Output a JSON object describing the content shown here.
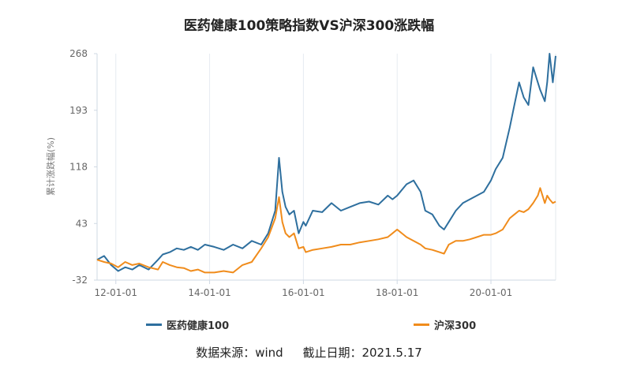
{
  "chart_data": {
    "type": "line",
    "title": "医药健康100策略指数VS沪深300涨跌幅",
    "ylabel": "累计涨跌幅(%)",
    "xlabel": "",
    "ylim": [
      -32,
      268
    ],
    "yticks": [
      "268",
      "193",
      "118",
      "43",
      "-32"
    ],
    "ytick_values": [
      268,
      193,
      118,
      43,
      -32
    ],
    "xlim": [
      2011.6,
      2021.38
    ],
    "xticks": [
      "12-01-01",
      "14-01-01",
      "16-01-01",
      "18-01-01",
      "20-01-01"
    ],
    "xtick_values": [
      2012,
      2014,
      2016,
      2018,
      2020
    ],
    "grid": "vertical",
    "legend": "bottom",
    "series": [
      {
        "name": "医药健康100",
        "color": "#2e6f9e",
        "x": [
          2011.6,
          2011.75,
          2011.9,
          2012.05,
          2012.2,
          2012.35,
          2012.5,
          2012.7,
          2012.9,
          2013.0,
          2013.15,
          2013.3,
          2013.45,
          2013.6,
          2013.75,
          2013.9,
          2014.1,
          2014.3,
          2014.5,
          2014.7,
          2014.9,
          2015.1,
          2015.25,
          2015.4,
          2015.48,
          2015.55,
          2015.62,
          2015.7,
          2015.8,
          2015.9,
          2016.0,
          2016.05,
          2016.2,
          2016.4,
          2016.6,
          2016.8,
          2017.0,
          2017.2,
          2017.4,
          2017.6,
          2017.8,
          2017.9,
          2018.0,
          2018.2,
          2018.35,
          2018.5,
          2018.6,
          2018.75,
          2018.9,
          2019.0,
          2019.1,
          2019.25,
          2019.4,
          2019.55,
          2019.7,
          2019.85,
          2020.0,
          2020.1,
          2020.25,
          2020.4,
          2020.5,
          2020.6,
          2020.7,
          2020.8,
          2020.9,
          2021.0,
          2021.05,
          2021.15,
          2021.2,
          2021.25,
          2021.32,
          2021.38
        ],
        "values": [
          -5,
          0,
          -12,
          -20,
          -15,
          -18,
          -12,
          -18,
          -5,
          2,
          5,
          10,
          8,
          12,
          8,
          15,
          12,
          8,
          15,
          10,
          20,
          15,
          30,
          60,
          130,
          85,
          65,
          55,
          60,
          30,
          45,
          40,
          60,
          58,
          70,
          60,
          65,
          70,
          72,
          68,
          80,
          75,
          80,
          95,
          100,
          85,
          60,
          55,
          40,
          35,
          45,
          60,
          70,
          75,
          80,
          85,
          100,
          115,
          130,
          170,
          200,
          230,
          210,
          200,
          250,
          230,
          220,
          205,
          230,
          268,
          230,
          265
        ]
      },
      {
        "name": "沪深300",
        "color": "#f08c1c",
        "x": [
          2011.6,
          2011.75,
          2011.9,
          2012.05,
          2012.2,
          2012.35,
          2012.5,
          2012.7,
          2012.9,
          2013.0,
          2013.15,
          2013.3,
          2013.45,
          2013.6,
          2013.75,
          2013.9,
          2014.1,
          2014.3,
          2014.5,
          2014.7,
          2014.9,
          2015.1,
          2015.25,
          2015.4,
          2015.48,
          2015.55,
          2015.62,
          2015.7,
          2015.8,
          2015.9,
          2016.0,
          2016.05,
          2016.2,
          2016.4,
          2016.6,
          2016.8,
          2017.0,
          2017.2,
          2017.4,
          2017.6,
          2017.8,
          2017.9,
          2018.0,
          2018.2,
          2018.35,
          2018.5,
          2018.6,
          2018.75,
          2018.9,
          2019.0,
          2019.1,
          2019.25,
          2019.4,
          2019.55,
          2019.7,
          2019.85,
          2020.0,
          2020.1,
          2020.25,
          2020.4,
          2020.5,
          2020.6,
          2020.7,
          2020.8,
          2020.9,
          2021.0,
          2021.05,
          2021.15,
          2021.2,
          2021.25,
          2021.32,
          2021.38
        ],
        "values": [
          -5,
          -8,
          -10,
          -15,
          -8,
          -12,
          -10,
          -15,
          -18,
          -8,
          -12,
          -15,
          -16,
          -20,
          -18,
          -22,
          -22,
          -20,
          -22,
          -12,
          -8,
          10,
          25,
          50,
          78,
          45,
          30,
          25,
          30,
          10,
          12,
          5,
          8,
          10,
          12,
          15,
          15,
          18,
          20,
          22,
          25,
          30,
          35,
          25,
          20,
          15,
          10,
          8,
          5,
          3,
          15,
          20,
          20,
          22,
          25,
          28,
          28,
          30,
          35,
          50,
          55,
          60,
          58,
          62,
          70,
          80,
          90,
          70,
          80,
          75,
          70,
          72
        ]
      }
    ]
  },
  "footer": {
    "source": "数据来源：wind",
    "date": "截止日期：2021.5.17"
  }
}
